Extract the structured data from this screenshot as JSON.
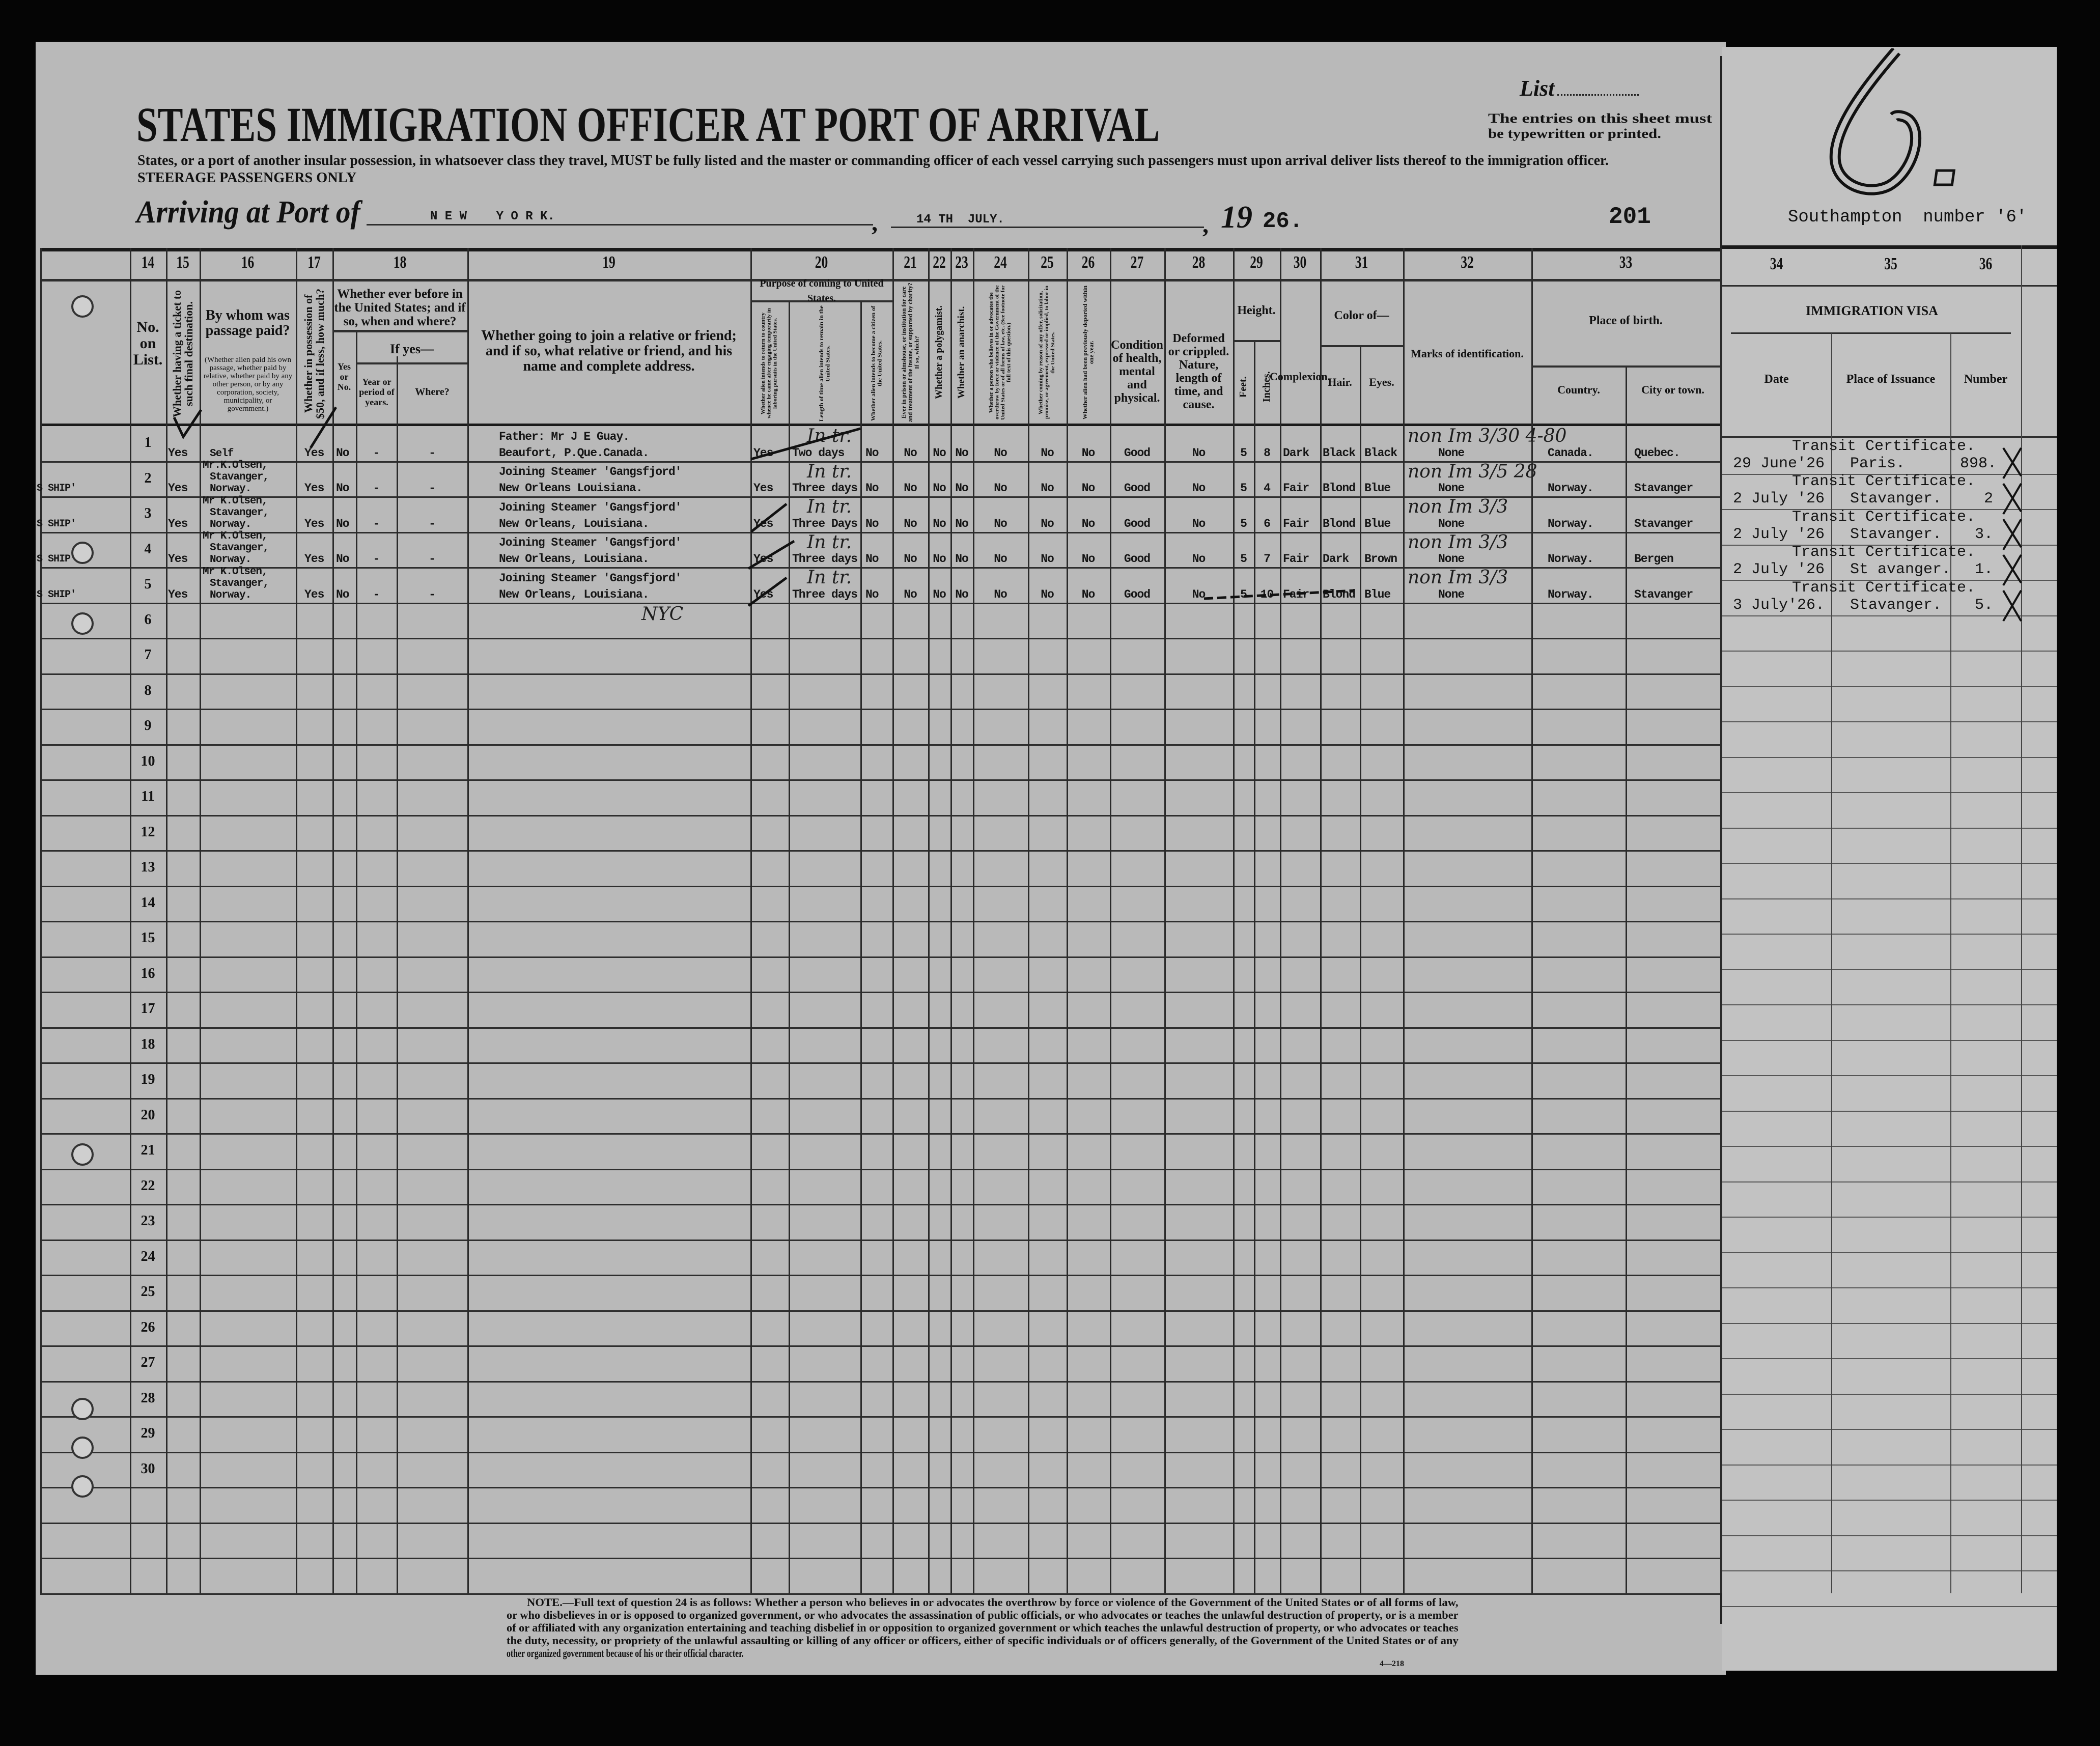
{
  "header": {
    "list_label": "List",
    "title": "STATES IMMIGRATION OFFICER AT PORT OF ARRIVAL",
    "entries_note_line1": "The entries on this sheet must",
    "entries_note_line2": "be typewritten or printed.",
    "instructions": "States, or a port of another insular possession, in whatsoever class they travel, MUST be fully listed and the master or commanding officer of each vessel carrying such passengers must upon arrival deliver lists thereof to the immigration officer.",
    "steerage": "STEERAGE PASSENGERS ONLY",
    "arriving_label": "Arriving at Port of",
    "port": "N E W    Y O R K.",
    "date": "14 TH  JULY.",
    "year_prefix": "19",
    "year_suffix": "26.",
    "list_number": "201",
    "sheet_number": "6.",
    "southampton": "Southampton  number '6'"
  },
  "columns": {
    "c14": {
      "num": "14",
      "label": "No. on List."
    },
    "c15": {
      "num": "15",
      "label": "Whether having a ticket to such final destination."
    },
    "c16": {
      "num": "16",
      "label": "By whom was passage paid?",
      "note": "(Whether alien paid his own passage, whether paid by relative, whether paid by any other person, or by any corporation, society, municipality, or government.)"
    },
    "c17": {
      "num": "17",
      "label": "Whether in possession of $50, and if less, how much?"
    },
    "c18": {
      "num": "18",
      "label": "Whether ever before in the United States; and if so, when and where?",
      "yes_no": "Yes or No.",
      "if_yes": "If yes—",
      "year": "Year or period of years.",
      "where": "Where?"
    },
    "c19": {
      "num": "19",
      "label": "Whether going to join a relative or friend; and if so, what relative or friend, and his name and complete address."
    },
    "c20": {
      "num": "20",
      "label": "Purpose of coming to United States.",
      "sub1": "Whether alien intends to return to country whence he came after engaging temporarily in laboring pursuits in the United States.",
      "sub2": "Length of time alien intends to remain in the United States.",
      "sub3": "Whether alien intends to become a citizen of the United States."
    },
    "c21": {
      "num": "21",
      "label": "Ever in prison or almshouse, or institution for care and treatment of the insane, or supported by charity? If so, which?"
    },
    "c22": {
      "num": "22",
      "label": "Whether a polygamist."
    },
    "c23": {
      "num": "23",
      "label": "Whether an anarchist."
    },
    "c24": {
      "num": "24",
      "label": "Whether a person who believes in or advocates the overthrow by force or violence of the Government of the United States or of all forms of law, etc. (See footnote for full text of this question.)"
    },
    "c25": {
      "num": "25",
      "label": "Whether coming by reason of any offer, solicitation, promise, or agreement, expressed or implied, to labor in the United States."
    },
    "c26": {
      "num": "26",
      "label": "Whether alien had been previously deported within one year."
    },
    "c27": {
      "num": "27",
      "label": "Condition of health, mental and physical."
    },
    "c28": {
      "num": "28",
      "label": "Deformed or crippled. Nature, length of time, and cause."
    },
    "c29": {
      "num": "29",
      "label": "Height.",
      "feet": "Feet.",
      "inches": "Inches."
    },
    "c30": {
      "num": "30",
      "label": "Complexion."
    },
    "c31": {
      "num": "31",
      "label": "Color of—",
      "hair": "Hair.",
      "eyes": "Eyes."
    },
    "c32": {
      "num": "32",
      "label": "Marks of identification."
    },
    "c33": {
      "num": "33",
      "label": "Place of birth.",
      "country": "Country.",
      "city": "City or town."
    },
    "c34": {
      "num": "34",
      "label": "Date"
    },
    "c35": {
      "num": "35",
      "label": "Place of Issuance"
    },
    "c36": {
      "num": "36",
      "label": "Number"
    },
    "visa_title": "IMMIGRATION  VISA"
  },
  "row_numbers": [
    "1",
    "2",
    "3",
    "4",
    "5",
    "6",
    "7",
    "8",
    "9",
    "10",
    "11",
    "12",
    "13",
    "14",
    "15",
    "16",
    "17",
    "18",
    "19",
    "20",
    "21",
    "22",
    "23",
    "24",
    "25",
    "26",
    "27",
    "28",
    "29",
    "30"
  ],
  "rows": [
    {
      "margin": "",
      "ticket": "Yes",
      "paid_by": [
        "Self"
      ],
      "possession": "Yes",
      "before": "No",
      "year": "-",
      "where": "-",
      "relative": [
        "Father: Mr J E Guay.",
        "Beaufort, P.Que.Canada."
      ],
      "return": "Yes",
      "length": "Two days",
      "citizen": "No",
      "prison": "No",
      "polygamist": "No",
      "anarchist": "No",
      "q24": "No",
      "q25": "No",
      "deported": "No",
      "health": "Good",
      "deformed": "No",
      "feet": "5",
      "inches": "8",
      "complexion": "Dark",
      "hair": "Black",
      "eyes": "Black",
      "marks": "None",
      "country": "Canada.",
      "city": "Quebec.",
      "visa_type": "Transit Certificate.",
      "visa_date": "29 June'26",
      "visa_place": "Paris.",
      "visa_number": "898.",
      "hand_purpose": "In tr.",
      "hand_marks": "non Im 3/30 4-80"
    },
    {
      "margin": "S SHIP'",
      "ticket": "Yes",
      "paid_by": [
        "Mr.K.Olsen,",
        "Stavanger,",
        "Norway."
      ],
      "possession": "Yes",
      "before": "No",
      "year": "-",
      "where": "-",
      "relative": [
        "Joining Steamer 'Gangsfjord'",
        "New Orleans Louisiana."
      ],
      "return": "Yes",
      "length": "Three days",
      "citizen": "No",
      "prison": "No",
      "polygamist": "No",
      "anarchist": "No",
      "q24": "No",
      "q25": "No",
      "deported": "No",
      "health": "Good",
      "deformed": "No",
      "feet": "5",
      "inches": "4",
      "complexion": "Fair",
      "hair": "Blond",
      "eyes": "Blue",
      "marks": "None",
      "country": "Norway.",
      "city": "Stavanger",
      "visa_type": "Transit Certificate.",
      "visa_date": "2 July '26",
      "visa_place": "Stavanger.",
      "visa_number": "2",
      "hand_purpose": "In tr.",
      "hand_marks": "non Im 3/5 28"
    },
    {
      "margin": "S SHIP'",
      "ticket": "Yes",
      "paid_by": [
        "Mr K.Olsen,",
        "Stavanger,",
        "Norway."
      ],
      "possession": "Yes",
      "before": "No",
      "year": "-",
      "where": "-",
      "relative": [
        "Joining Steamer 'Gangsfjord'",
        "New Orleans, Louisiana."
      ],
      "return": "Yes",
      "length": "Three Days",
      "citizen": "No",
      "prison": "No",
      "polygamist": "No",
      "anarchist": "No",
      "q24": "No",
      "q25": "No",
      "deported": "No",
      "health": "Good",
      "deformed": "No",
      "feet": "5",
      "inches": "6",
      "complexion": "Fair",
      "hair": "Blond",
      "eyes": "Blue",
      "marks": "None",
      "country": "Norway.",
      "city": "Stavanger",
      "visa_type": "Transit Certificate.",
      "visa_date": "2 July '26",
      "visa_place": "Stavanger.",
      "visa_number": "3.",
      "hand_purpose": "In tr.",
      "hand_marks": "non Im 3/3"
    },
    {
      "margin": "S SHIP",
      "ticket": "Yes",
      "paid_by": [
        "Mr K.Olsen,",
        "Stavanger,",
        "Norway."
      ],
      "possession": "Yes",
      "before": "No",
      "year": "-",
      "where": "-",
      "relative": [
        "Joining Steamer 'Gangsfjord'",
        "New Orleans, Louisiana."
      ],
      "return": "Yes",
      "length": "Three days",
      "citizen": "No",
      "prison": "No",
      "polygamist": "No",
      "anarchist": "No",
      "q24": "No",
      "q25": "No",
      "deported": "No",
      "health": "Good",
      "deformed": "No",
      "feet": "5",
      "inches": "7",
      "complexion": "Fair",
      "hair": "Dark",
      "eyes": "Brown",
      "marks": "None",
      "country": "Norway.",
      "city": "Bergen",
      "visa_type": "Transit Certificate.",
      "visa_date": "2 July '26",
      "visa_place": "St avanger.",
      "visa_number": "1.",
      "hand_purpose": "In tr.",
      "hand_marks": "non Im 3/3"
    },
    {
      "margin": "S SHIP'",
      "ticket": "Yes",
      "paid_by": [
        "Mr K.Olsen,",
        "Stavanger,",
        "Norway."
      ],
      "possession": "Yes",
      "before": "No",
      "year": "-",
      "where": "-",
      "relative": [
        "Joining Steamer 'Gangsfjord'",
        "New Orleans, Louisiana."
      ],
      "return": "Yes",
      "length": "Three days",
      "citizen": "No",
      "prison": "No",
      "polygamist": "No",
      "anarchist": "No",
      "q24": "No",
      "q25": "No",
      "deported": "No",
      "health": "Good",
      "deformed": "No",
      "feet": "5",
      "inches": "10",
      "complexion": "Fair",
      "hair": "Blond",
      "eyes": "Blue",
      "marks": "None",
      "country": "Norway.",
      "city": "Stavanger",
      "visa_type": "Transit Certificate.",
      "visa_date": "3 July'26.",
      "visa_place": "Stavanger.",
      "visa_number": "5.",
      "hand_purpose": "In tr.",
      "hand_marks": "non Im 3/3",
      "hand_address": "NYC"
    }
  ],
  "footnote": {
    "lines": [
      "NOTE.—Full text of question 24 is as follows: Whether a person who believes in or advocates the overthrow by force or violence of the Government of the United States or of all forms of law,",
      "or who disbelieves in or is opposed to organized government, or who advocates the assassination of public officials, or who advocates or teaches the unlawful destruction of property, or is a member",
      "of or affiliated with any organization entertaining and teaching disbelief in or opposition to organized government or which teaches the unlawful destruction of property, or who advocates or teaches",
      "the duty, necessity, or propriety of the unlawful assaulting or killing of any officer or officers, either of specific individuals or of officers generally, of the Government of the United States or of any",
      "other organized government because of his or their official character."
    ],
    "form_number": "4—218"
  },
  "colors": {
    "paper": "#b9b9b9",
    "paper_right": "#c2c2c2",
    "ink": "#111111",
    "background": "#050505"
  }
}
